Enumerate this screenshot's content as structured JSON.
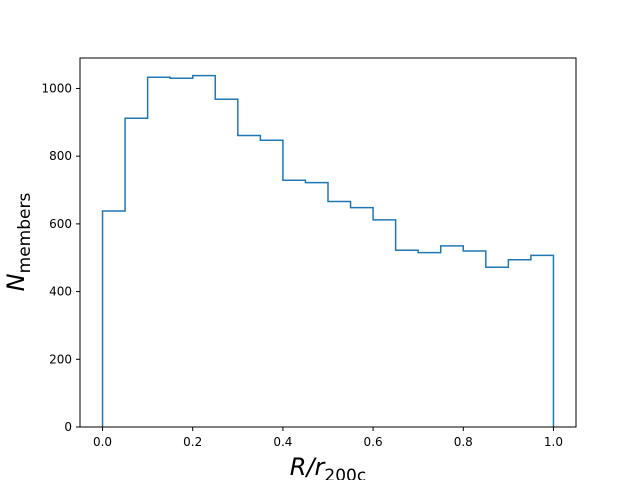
{
  "chart_data": {
    "type": "histogram",
    "bin_edges": [
      0.0,
      0.05,
      0.1,
      0.15,
      0.2,
      0.25,
      0.3,
      0.35,
      0.4,
      0.45,
      0.5,
      0.55,
      0.6,
      0.65,
      0.7,
      0.75,
      0.8,
      0.85,
      0.9,
      0.95,
      1.0
    ],
    "values": [
      638,
      912,
      1033,
      1030,
      1038,
      968,
      861,
      847,
      729,
      722,
      666,
      648,
      612,
      522,
      515,
      535,
      520,
      472,
      494,
      507
    ],
    "xlim": [
      -0.05,
      1.05
    ],
    "ylim": [
      0,
      1090
    ],
    "x_ticks": [
      0.0,
      0.2,
      0.4,
      0.6,
      0.8,
      1.0
    ],
    "x_tick_labels": [
      "0.0",
      "0.2",
      "0.4",
      "0.6",
      "0.8",
      "1.0"
    ],
    "y_ticks": [
      0,
      200,
      400,
      600,
      800,
      1000
    ],
    "y_tick_labels": [
      "0",
      "200",
      "400",
      "600",
      "800",
      "1000"
    ],
    "xlabel": {
      "main": "R/r",
      "sub": "200c"
    },
    "ylabel": {
      "main": "N",
      "sub": "members"
    },
    "line_color": "#1f77b4",
    "grid": false,
    "legend": "none"
  }
}
